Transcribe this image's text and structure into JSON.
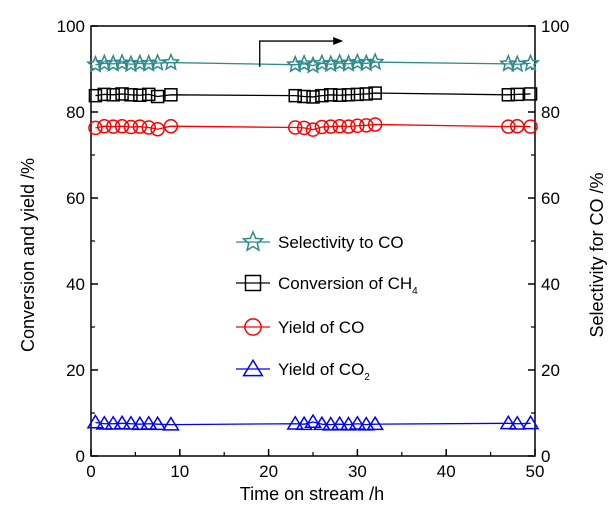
{
  "chart_data": {
    "type": "line",
    "xlabel": "Time on stream /h",
    "ylabel_left": "Conversion and yield /%",
    "ylabel_right": "Selectivity for CO /%",
    "xlim": [
      0,
      50
    ],
    "ylim_left": [
      0,
      100
    ],
    "ylim_right": [
      0,
      100
    ],
    "x_ticks": [
      0,
      10,
      20,
      30,
      40,
      50
    ],
    "y_ticks": [
      0,
      20,
      40,
      60,
      80,
      100
    ],
    "grid": false,
    "legend_position": "center",
    "annotation": "arrow pointing to right axis",
    "series": [
      {
        "name": "Selectivity to CO",
        "name_main": "Selectivity to CO",
        "name_sub": "",
        "marker": "star",
        "color": "#2e8b8b",
        "axis": "right",
        "x": [
          0.5,
          1.5,
          2.5,
          3.5,
          4.5,
          5.5,
          6.5,
          7.5,
          9,
          23,
          24,
          25,
          26,
          27,
          28,
          29,
          30,
          31,
          32,
          47,
          48,
          49.5
        ],
        "y": [
          91,
          91.3,
          91.2,
          91.4,
          91.1,
          91.3,
          91.2,
          91.4,
          91.5,
          91,
          91.2,
          90.8,
          91.3,
          91.1,
          91.4,
          91.2,
          91.5,
          91.3,
          91.6,
          91.2,
          91.1,
          91.3
        ]
      },
      {
        "name": "Conversion of CH4",
        "name_main": "Conversion of CH",
        "name_sub": "4",
        "marker": "square",
        "color": "#000000",
        "axis": "left",
        "x": [
          0.5,
          1.5,
          2.5,
          3.5,
          4.5,
          5.5,
          6.5,
          7.5,
          9,
          23,
          24,
          25,
          26,
          27,
          28,
          29,
          30,
          31,
          32,
          47,
          48,
          49.5
        ],
        "y": [
          83.8,
          84.1,
          84,
          84.2,
          84,
          83.9,
          84.1,
          83.6,
          84,
          83.8,
          83.6,
          83.5,
          83.8,
          84,
          83.9,
          84,
          84.1,
          84.2,
          84.4,
          84,
          84.1,
          84.2
        ]
      },
      {
        "name": "Yield of CO",
        "name_main": "Yield of CO",
        "name_sub": "",
        "marker": "circle",
        "color": "#ff0000",
        "axis": "left",
        "x": [
          0.5,
          1.5,
          2.5,
          3.5,
          4.5,
          5.5,
          6.5,
          7.5,
          9,
          23,
          24,
          25,
          26,
          27,
          28,
          29,
          30,
          31,
          32,
          47,
          48,
          49.5
        ],
        "y": [
          76.3,
          76.7,
          76.6,
          76.7,
          76.5,
          76.6,
          76.4,
          76,
          76.7,
          76.4,
          76.3,
          75.9,
          76.5,
          76.6,
          76.7,
          76.6,
          76.8,
          76.9,
          77.1,
          76.6,
          76.7,
          76.6
        ]
      },
      {
        "name": "Yield of CO2",
        "name_main": "Yield of CO",
        "name_sub": "2",
        "marker": "triangle",
        "color": "#0000ff",
        "axis": "left",
        "x": [
          0.5,
          1.5,
          2.5,
          3.5,
          4.5,
          5.5,
          6.5,
          7.5,
          9,
          23,
          24,
          25,
          26,
          27,
          28,
          29,
          30,
          31,
          32,
          47,
          48,
          49.5
        ],
        "y": [
          7.8,
          7.5,
          7.5,
          7.6,
          7.5,
          7.4,
          7.5,
          7.4,
          7.3,
          7.5,
          7.4,
          7.9,
          7.4,
          7.3,
          7.4,
          7.3,
          7.5,
          7.3,
          7.4,
          7.6,
          7.5,
          7.6
        ]
      }
    ]
  }
}
